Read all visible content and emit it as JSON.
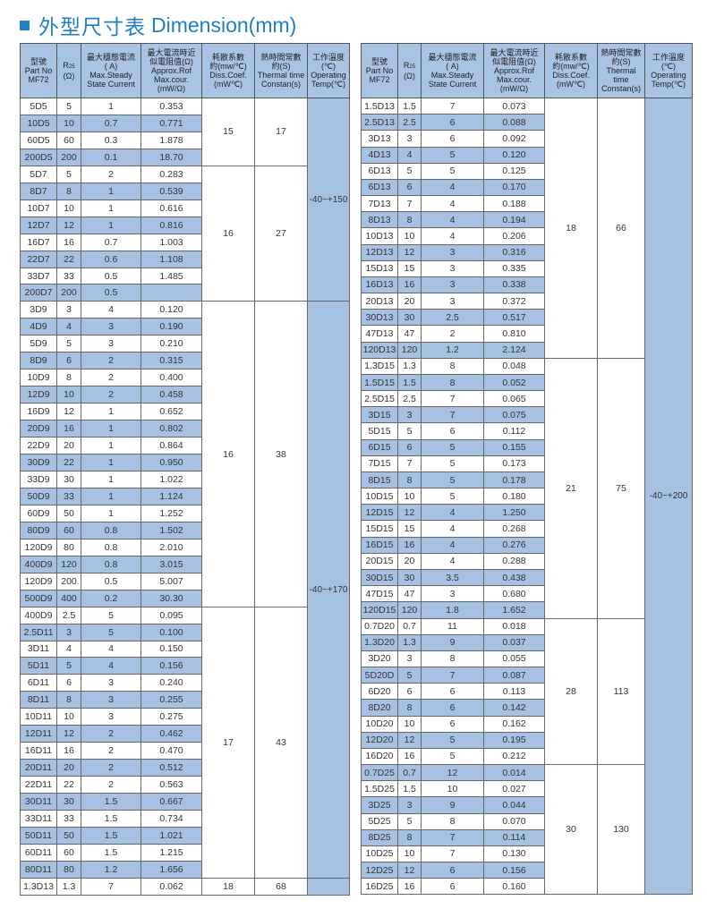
{
  "title": {
    "zh": "外型尺寸表",
    "en": "Dimension(mm)"
  },
  "colors": {
    "accent": "#1f7fc4",
    "header_bg": "#a9c3e3",
    "row_alt_bg": "#a7c1e2"
  },
  "headers": {
    "part": "型號\nPart No\nMF72",
    "r_main": "R",
    "r_sub": "25",
    "r_unit": "(Ω)",
    "current": "最大穩態電流\n( A)\nMax.Steady\nState Current",
    "approx": "最大電流時近\n似電阻值(Ω)\nApprox.Rof\nMax.cour.\n(mW/Ω)",
    "diss": "耗散系數\n約(mw/℃)\nDiss.Coef.\n(mW℃)",
    "thermal": "熱時間常數\n約(S)\nThermal time\nConstan(s)",
    "temp": "工作溫度\n(℃)\nOperating\nTemp(℃)"
  },
  "tables": [
    {
      "rows": [
        [
          "5D5",
          "5",
          "1",
          "0.353"
        ],
        [
          "10D5",
          "10",
          "0.7",
          "0.771"
        ],
        [
          "60D5",
          "60",
          "0.3",
          "1.878"
        ],
        [
          "200D5",
          "200",
          "0.1",
          "18.70"
        ],
        [
          "5D7",
          "5",
          "2",
          "0.283"
        ],
        [
          "8D7",
          "8",
          "1",
          "0.539"
        ],
        [
          "10D7",
          "10",
          "1",
          "0.616"
        ],
        [
          "12D7",
          "12",
          "1",
          "0.816"
        ],
        [
          "16D7",
          "16",
          "0.7",
          "1.003"
        ],
        [
          "22D7",
          "22",
          "0.6",
          "1.108"
        ],
        [
          "33D7",
          "33",
          "0.5",
          "1.485"
        ],
        [
          "200D7",
          "200",
          "0.5",
          ""
        ],
        [
          "3D9",
          "3",
          "4",
          "0.120"
        ],
        [
          "4D9",
          "4",
          "3",
          "0.190"
        ],
        [
          "5D9",
          "5",
          "3",
          "0.210"
        ],
        [
          "8D9",
          "6",
          "2",
          "0.315"
        ],
        [
          "10D9",
          "8",
          "2",
          "0.400"
        ],
        [
          "12D9",
          "10",
          "2",
          "0.458"
        ],
        [
          "16D9",
          "12",
          "1",
          "0.652"
        ],
        [
          "20D9",
          "16",
          "1",
          "0.802"
        ],
        [
          "22D9",
          "20",
          "1",
          "0.864"
        ],
        [
          "30D9",
          "22",
          "1",
          "0.950"
        ],
        [
          "33D9",
          "30",
          "1",
          "1.022"
        ],
        [
          "50D9",
          "33",
          "1",
          "1.124"
        ],
        [
          "60D9",
          "50",
          "1",
          "1.252"
        ],
        [
          "80D9",
          "60",
          "0.8",
          "1.502"
        ],
        [
          "120D9",
          "80",
          "0.8",
          "2.010"
        ],
        [
          "400D9",
          "120",
          "0.8",
          "3.015"
        ],
        [
          "120D9",
          "200",
          "0.5",
          "5.007"
        ],
        [
          "500D9",
          "400",
          "0.2",
          "30.30"
        ],
        [
          "400D9",
          "2.5",
          "5",
          "0.095"
        ],
        [
          "2.5D11",
          "3",
          "5",
          "0.100"
        ],
        [
          "3D11",
          "4",
          "4",
          "0.150"
        ],
        [
          "5D11",
          "5",
          "4",
          "0.156"
        ],
        [
          "6D11",
          "6",
          "3",
          "0.240"
        ],
        [
          "8D11",
          "8",
          "3",
          "0.255"
        ],
        [
          "10D11",
          "10",
          "3",
          "0.275"
        ],
        [
          "12D11",
          "12",
          "2",
          "0.462"
        ],
        [
          "16D11",
          "16",
          "2",
          "0.470"
        ],
        [
          "20D11",
          "20",
          "2",
          "0.512"
        ],
        [
          "22D11",
          "22",
          "2",
          "0.563"
        ],
        [
          "30D11",
          "30",
          "1.5",
          "0.667"
        ],
        [
          "33D11",
          "33",
          "1.5",
          "0.734"
        ],
        [
          "50D11",
          "50",
          "1.5",
          "1.021"
        ],
        [
          "60D11",
          "60",
          "1.5",
          "1.215"
        ],
        [
          "80D11",
          "80",
          "1.2",
          "1.656"
        ],
        [
          "1.3D13",
          "1.3",
          "7",
          "0.062"
        ]
      ],
      "coef_groups": [
        {
          "diss": "15",
          "time": "17",
          "span": 4
        },
        {
          "diss": "16",
          "time": "27",
          "span": 8
        },
        {
          "diss": "16",
          "time": "38",
          "span": 18
        },
        {
          "diss": "17",
          "time": "43",
          "span": 16
        },
        {
          "diss": "18",
          "time": "68",
          "span": 1
        }
      ],
      "temp_groups": [
        {
          "temp": "-40~+150",
          "span": 12
        },
        {
          "temp": "-40~+170",
          "span": 34
        },
        {
          "temp": "",
          "span": 1
        }
      ]
    },
    {
      "rows": [
        [
          "1.5D13",
          "1.5",
          "7",
          "0.073"
        ],
        [
          "2.5D13",
          "2.5",
          "6",
          "0.088"
        ],
        [
          "3D13",
          "3",
          "6",
          "0.092"
        ],
        [
          "4D13",
          "4",
          "5",
          "0.120"
        ],
        [
          "6D13",
          "5",
          "5",
          "0.125"
        ],
        [
          "6D13",
          "6",
          "4",
          "0.170"
        ],
        [
          "7D13",
          "7",
          "4",
          "0.188"
        ],
        [
          "8D13",
          "8",
          "4",
          "0.194"
        ],
        [
          "10D13",
          "10",
          "4",
          "0.206"
        ],
        [
          "12D13",
          "12",
          "3",
          "0.316"
        ],
        [
          "15D13",
          "15",
          "3",
          "0.335"
        ],
        [
          "16D13",
          "16",
          "3",
          "0.338"
        ],
        [
          "20D13",
          "20",
          "3",
          "0.372"
        ],
        [
          "30D13",
          "30",
          "2.5",
          "0.517"
        ],
        [
          "47D13",
          "47",
          "2",
          "0.810"
        ],
        [
          "120D13",
          "120",
          "1.2",
          "2.124"
        ],
        [
          "1.3D15",
          "1.3",
          "8",
          "0.048"
        ],
        [
          "1.5D15",
          "1.5",
          "8",
          "0.052"
        ],
        [
          "2.5D15",
          "2.5",
          "7",
          "0.065"
        ],
        [
          "3D15",
          "3",
          "7",
          "0.075"
        ],
        [
          "5D15",
          "5",
          "6",
          "0.112"
        ],
        [
          "6D15",
          "6",
          "5",
          "0.155"
        ],
        [
          "7D15",
          "7",
          "5",
          "0.173"
        ],
        [
          "8D15",
          "8",
          "5",
          "0.178"
        ],
        [
          "10D15",
          "10",
          "5",
          "0.180"
        ],
        [
          "12D15",
          "12",
          "4",
          "1.250"
        ],
        [
          "15D15",
          "15",
          "4",
          "0.268"
        ],
        [
          "16D15",
          "16",
          "4",
          "0.276"
        ],
        [
          "20D15",
          "20",
          "4",
          "0.288"
        ],
        [
          "30D15",
          "30",
          "3.5",
          "0.438"
        ],
        [
          "47D15",
          "47",
          "3",
          "0.680"
        ],
        [
          "120D15",
          "120",
          "1.8",
          "1.652"
        ],
        [
          "0.7D20",
          "0.7",
          "11",
          "0.018"
        ],
        [
          "1.3D20",
          "1.3",
          "9",
          "0.037"
        ],
        [
          "3D20",
          "3",
          "8",
          "0.055"
        ],
        [
          "5D20D",
          "5",
          "7",
          "0.087"
        ],
        [
          "6D20",
          "6",
          "6",
          "0.113"
        ],
        [
          "8D20",
          "8",
          "6",
          "0.142"
        ],
        [
          "10D20",
          "10",
          "6",
          "0.162"
        ],
        [
          "12D20",
          "12",
          "5",
          "0.195"
        ],
        [
          "16D20",
          "16",
          "5",
          "0.212"
        ],
        [
          "0.7D25",
          "0.7",
          "12",
          "0.014"
        ],
        [
          "1.5D25",
          "1.5",
          "10",
          "0.027"
        ],
        [
          "3D25",
          "3",
          "9",
          "0.044"
        ],
        [
          "5D25",
          "5",
          "8",
          "0.070"
        ],
        [
          "8D25",
          "8",
          "7",
          "0.114"
        ],
        [
          "10D25",
          "10",
          "7",
          "0.130"
        ],
        [
          "12D25",
          "12",
          "6",
          "0.156"
        ],
        [
          "16D25",
          "16",
          "6",
          "0.160"
        ]
      ],
      "coef_groups": [
        {
          "diss": "18",
          "time": "66",
          "span": 16
        },
        {
          "diss": "21",
          "time": "75",
          "span": 16
        },
        {
          "diss": "28",
          "time": "113",
          "span": 9
        },
        {
          "diss": "30",
          "time": "130",
          "span": 8
        }
      ],
      "temp_groups": [
        {
          "temp": "-40~+200",
          "span": 49
        }
      ]
    }
  ]
}
